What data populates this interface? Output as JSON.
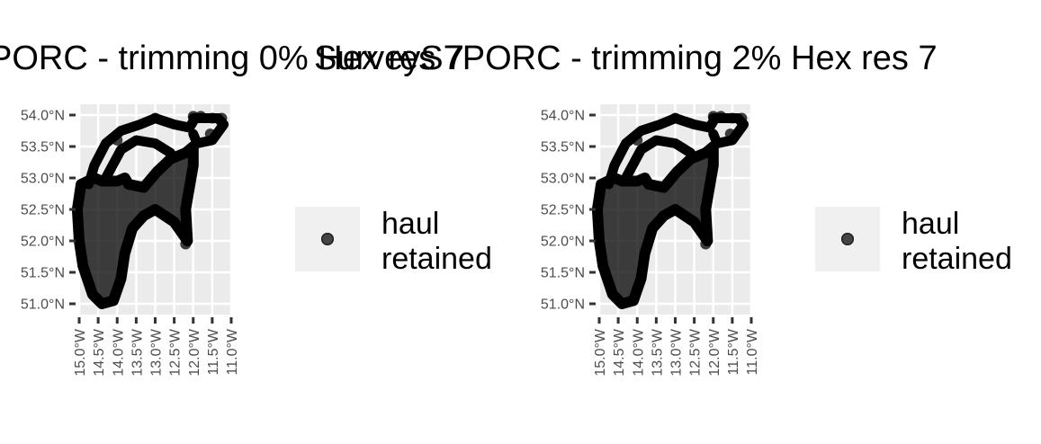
{
  "chart_data": [
    {
      "type": "scatter",
      "title": "PORC - trimming 0% Hex res 7",
      "xlim": [
        -15.0,
        -11.0
      ],
      "ylim": [
        51.0,
        54.0
      ],
      "x_ticks": [
        "15.0°W",
        "14.5°W",
        "14.0°W",
        "13.5°W",
        "13.0°W",
        "12.5°W",
        "12.0°W",
        "11.5°W",
        "11.0°W"
      ],
      "y_ticks": [
        "51.0°N",
        "51.5°N",
        "52.0°N",
        "52.5°N",
        "53.0°N",
        "53.5°N",
        "54.0°N"
      ],
      "legend": {
        "entries": [
          "haul\nretained"
        ],
        "position": "right"
      },
      "grid": true,
      "series": [
        {
          "name": "haul retained",
          "color": "#000000"
        }
      ]
    },
    {
      "type": "scatter",
      "title": "SurveyS7PORC - trimming 2% Hex res 7",
      "xlim": [
        -15.0,
        -11.0
      ],
      "ylim": [
        51.0,
        54.0
      ],
      "x_ticks": [
        "15.0°W",
        "14.5°W",
        "14.0°W",
        "13.5°W",
        "13.0°W",
        "12.5°W",
        "12.0°W",
        "11.5°W",
        "11.0°W"
      ],
      "y_ticks": [
        "51.0°N",
        "51.5°N",
        "52.0°N",
        "52.5°N",
        "53.0°N",
        "53.5°N",
        "54.0°N"
      ],
      "legend": {
        "entries": [
          "haul\nretained"
        ],
        "position": "right"
      },
      "grid": true,
      "series": [
        {
          "name": "haul retained",
          "color": "#000000"
        }
      ]
    }
  ],
  "panels": [
    {
      "title": "PORC - trimming 0% Hex res 7",
      "legend_label": "haul\nretained"
    },
    {
      "title": "SurveyS7PORC - trimming 2% Hex res 7",
      "legend_label": "haul\nretained"
    }
  ],
  "style": {
    "panel_bg": "#ebebeb",
    "grid_color": "#ffffff",
    "point_color": "#000000",
    "legend_key_bg": "#f0f0f0"
  }
}
